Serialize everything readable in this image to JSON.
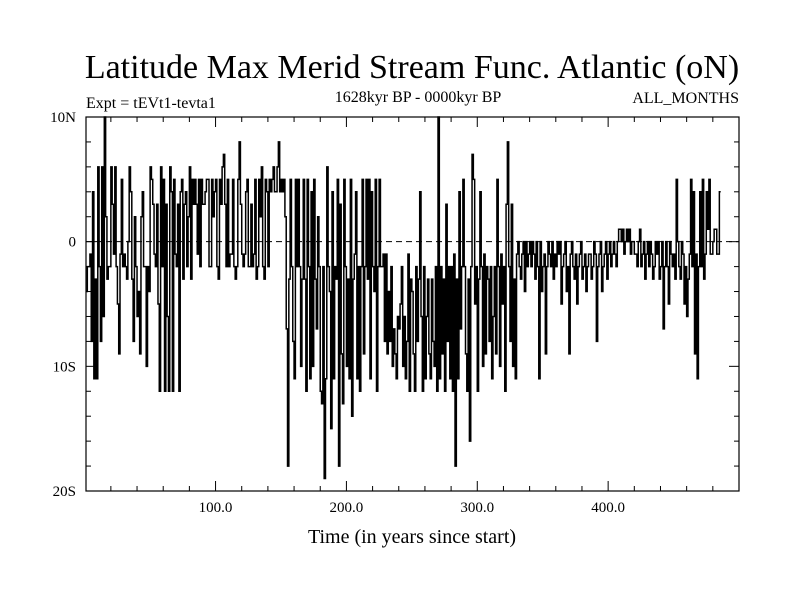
{
  "chart_data": {
    "type": "line",
    "title": "Latitude Max Merid Stream Func. Atlantic (oN)",
    "left_label": "Expt = tEVt1-tevta1",
    "center_label": "1628kyr BP - 0000kyr BP",
    "right_label": "ALL_MONTHS",
    "xlabel": "Time (in years since start)",
    "ylabel": "",
    "xlim": [
      1,
      500
    ],
    "ylim": [
      -20,
      10
    ],
    "x_ticks": [
      100,
      200,
      300,
      400
    ],
    "x_tick_labels": [
      "100.0",
      "200.0",
      "300.0",
      "400.0"
    ],
    "y_ticks": [
      10,
      0,
      -10,
      -20
    ],
    "y_tick_labels": [
      "10N",
      "0",
      "10S",
      "20S"
    ],
    "reference_line": 0,
    "series": [
      {
        "name": "latitude",
        "x_start": 1,
        "x_step": 1,
        "values": [
          -4,
          -2,
          -2,
          -1,
          -8,
          4,
          -11,
          -3,
          -11,
          6,
          -2,
          -8,
          6,
          -6,
          10,
          2,
          -3,
          -2,
          -2,
          6,
          3,
          -1,
          6,
          -2,
          -5,
          -9,
          -1,
          5,
          -2,
          -1,
          -2,
          -3,
          0,
          6,
          4,
          -3,
          -8,
          2,
          -2,
          -6,
          -4,
          -9,
          2,
          4,
          -2,
          -2,
          -10,
          -2,
          -4,
          6,
          5,
          3,
          -1,
          -2,
          3,
          -5,
          -12,
          6,
          -2,
          5,
          -12,
          3,
          -6,
          -12,
          6,
          4,
          -12,
          5,
          -1,
          -2,
          3,
          -12,
          4,
          5,
          -3,
          3,
          4,
          -2,
          2,
          6,
          -3,
          5,
          3,
          5,
          3,
          -1,
          5,
          -2,
          5,
          3,
          3,
          4,
          5,
          5,
          -2,
          -2,
          5,
          2,
          4,
          5,
          -2,
          -3,
          5,
          3,
          6,
          7,
          3,
          -2,
          5,
          -2,
          -1,
          -1,
          5,
          -2,
          -3,
          -2,
          5,
          8,
          3,
          -1,
          -2,
          -1,
          4,
          5,
          -2,
          -2,
          3,
          -2,
          -1,
          5,
          -3,
          -2,
          5,
          2,
          6,
          -2,
          -3,
          5,
          4,
          -2,
          5,
          4,
          5,
          6,
          4,
          4,
          6,
          8,
          4,
          5,
          4,
          5,
          2,
          -7,
          -18,
          -3,
          5,
          -2,
          -8,
          -11,
          5,
          -2,
          5,
          -2,
          -10,
          -3,
          5,
          -3,
          -12,
          5,
          -2,
          -11,
          4,
          -10,
          5,
          -3,
          -7,
          2,
          -2,
          -12,
          -13,
          -2,
          -19,
          -11,
          6,
          -2,
          -4,
          -15,
          4,
          -11,
          -2,
          -3,
          5,
          -18,
          3,
          -9,
          -13,
          5,
          -2,
          -10,
          -3,
          -11,
          5,
          -14,
          -3,
          -1,
          4,
          -11,
          -2,
          -12,
          -2,
          5,
          -9,
          -2,
          5,
          -3,
          5,
          -11,
          4,
          -2,
          -4,
          5,
          -12,
          -2,
          5,
          -2,
          -2,
          -1,
          -8,
          -1,
          -9,
          -4,
          -8,
          -2,
          -10,
          -7,
          -9,
          -11,
          -6,
          -7,
          -5,
          -2,
          -10,
          -6,
          -11,
          -8,
          -1,
          -12,
          -3,
          -4,
          -9,
          -12,
          -2,
          -8,
          -3,
          4,
          -6,
          -12,
          -2,
          -11,
          -6,
          -3,
          -9,
          -11,
          -3,
          -8,
          -10,
          -2,
          -12,
          10,
          -11,
          -2,
          -9,
          -3,
          -12,
          3,
          -8,
          -2,
          -11,
          -2,
          -12,
          -1,
          -18,
          -3,
          -11,
          4,
          -7,
          -2,
          5,
          -2,
          -9,
          -12,
          -3,
          -16,
          -2,
          7,
          5,
          -5,
          -2,
          -12,
          -3,
          4,
          -2,
          -10,
          -1,
          -9,
          -2,
          -3,
          -8,
          -2,
          -11,
          -6,
          -2,
          -9,
          5,
          -2,
          -10,
          -1,
          -5,
          -2,
          -12,
          3,
          8,
          -2,
          -8,
          3,
          -10,
          -3,
          -11,
          -1,
          0,
          -2,
          -3,
          -1,
          0,
          -4,
          0,
          -2,
          -1,
          0,
          -2,
          0,
          -1,
          -3,
          0,
          -2,
          -11,
          0,
          -4,
          -2,
          -1,
          -9,
          -2,
          0,
          -1,
          -2,
          0,
          -3,
          -1,
          -2,
          0,
          -1,
          0,
          -5,
          -2,
          -1,
          0,
          -4,
          -2,
          -9,
          -1,
          0,
          -2,
          -3,
          -1,
          -5,
          -2,
          -1,
          0,
          -3,
          -2,
          -1,
          -4,
          -2,
          -1,
          -1,
          -3,
          -2,
          0,
          -1,
          -8,
          -2,
          -1,
          0,
          -4,
          -2,
          -1,
          0,
          -3,
          -1,
          0,
          -2,
          -1,
          0,
          -1,
          -2,
          0,
          1,
          1,
          0,
          1,
          -1,
          0,
          1,
          0,
          1,
          -1,
          0,
          0,
          -1,
          -1,
          -2,
          0,
          1,
          -2,
          -1,
          0,
          -3,
          -1,
          0,
          -2,
          0,
          -1,
          -3,
          -2,
          0,
          -1,
          0,
          -3,
          -2,
          0,
          -7,
          -2,
          0,
          -2,
          -5,
          0,
          -1,
          -2,
          -1,
          -3,
          5,
          0,
          -2,
          -3,
          0,
          -1,
          -5,
          -2,
          -6,
          -3,
          -1,
          5,
          -2,
          4,
          -9,
          -1,
          -11,
          -2,
          4,
          -2,
          5,
          -3,
          -1,
          4,
          1,
          5,
          -1,
          -1,
          0,
          1,
          1,
          -1,
          -1,
          4
        ]
      }
    ]
  }
}
